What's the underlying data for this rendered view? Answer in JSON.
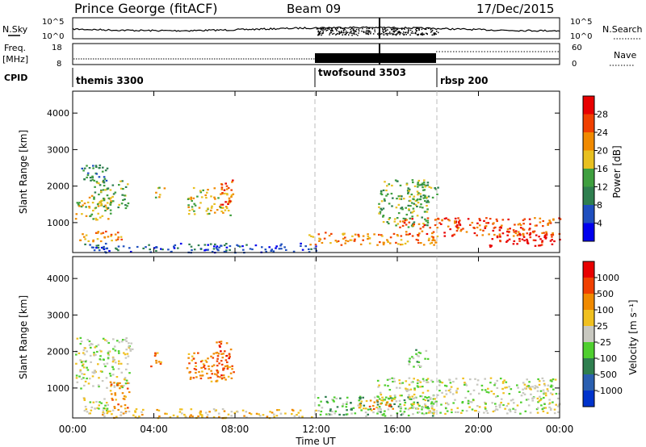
{
  "header": {
    "station": "Prince George (fitACF)",
    "beam": "Beam 09",
    "date": "17/Dec/2015"
  },
  "noise_panel": {
    "left_label": "N.Sky",
    "right_label": "N.Search",
    "left_ticks": [
      "10^5",
      "10^0"
    ],
    "right_ticks": [
      "10^5",
      "10^0"
    ]
  },
  "freq_panel": {
    "left_label_1": "Freq.",
    "left_label_2": "[MHz]",
    "right_label": "Nave",
    "left_ticks": [
      "18",
      "8"
    ],
    "right_ticks": [
      "60",
      "0"
    ]
  },
  "cpid": {
    "label": "CPID",
    "entries": [
      {
        "name": "themis 3300",
        "start": 0
      },
      {
        "name": "twofsound 3503",
        "start": 12
      },
      {
        "name": "rbsp 200",
        "start": 18
      }
    ]
  },
  "x_axis": {
    "label": "Time UT",
    "ticks": [
      "00:00",
      "04:00",
      "08:00",
      "12:00",
      "16:00",
      "20:00",
      "00:00"
    ],
    "tick_hours": [
      0,
      4,
      8,
      12,
      16,
      20,
      24
    ]
  },
  "colors": {
    "power": [
      "#0000ee",
      "#1f4fbf",
      "#2f7f4f",
      "#3f9f3f",
      "#e8c020",
      "#f08a00",
      "#f04000",
      "#e80000"
    ],
    "velocity": [
      "#0033cc",
      "#2a5fb0",
      "#2f7f4f",
      "#4fcf2f",
      "#c8c8c0",
      "#f0c020",
      "#f08a00",
      "#f04000",
      "#e80000"
    ]
  },
  "chart_data": [
    {
      "type": "heatmap",
      "title": "Power",
      "xlabel": "Time UT",
      "ylabel": "Slant Range [km]",
      "xlim": [
        0,
        24
      ],
      "ylim": [
        180,
        4600
      ],
      "yticks": [
        "1000",
        "2000",
        "3000",
        "4000"
      ],
      "colorbar_label": "Power [dB]",
      "colorbar_ticks": [
        "4",
        "8",
        "12",
        "16",
        "20",
        "24",
        "28"
      ],
      "regions": [
        {
          "t0": 0.1,
          "t1": 2.0,
          "r0": 1100,
          "r1": 1800,
          "lvl": 4
        },
        {
          "t0": 0.3,
          "t1": 2.4,
          "r0": 500,
          "r1": 800,
          "lvl": 5
        },
        {
          "t0": 1.0,
          "t1": 2.7,
          "r0": 1400,
          "r1": 2200,
          "lvl": 3
        },
        {
          "t0": 0.4,
          "t1": 1.8,
          "r0": 2100,
          "r1": 2600,
          "lvl": 2
        },
        {
          "t0": 4.0,
          "t1": 4.5,
          "r0": 1700,
          "r1": 2000,
          "lvl": 4
        },
        {
          "t0": 5.6,
          "t1": 7.8,
          "r0": 1200,
          "r1": 2000,
          "lvl": 4
        },
        {
          "t0": 7.2,
          "t1": 7.9,
          "r0": 1500,
          "r1": 2200,
          "lvl": 6
        },
        {
          "t0": 0.5,
          "t1": 12.0,
          "r0": 200,
          "r1": 450,
          "lvl": 1
        },
        {
          "t0": 11.5,
          "t1": 18.0,
          "r0": 400,
          "r1": 750,
          "lvl": 5
        },
        {
          "t0": 15.0,
          "t1": 17.5,
          "r0": 900,
          "r1": 2200,
          "lvl": 3
        },
        {
          "t0": 16.0,
          "t1": 24.0,
          "r0": 650,
          "r1": 1150,
          "lvl": 6
        },
        {
          "t0": 20.5,
          "t1": 24.0,
          "r0": 350,
          "r1": 750,
          "lvl": 7
        },
        {
          "t0": 16.5,
          "t1": 18.0,
          "r0": 1600,
          "r1": 2100,
          "lvl": 3
        }
      ]
    },
    {
      "type": "heatmap",
      "title": "Velocity",
      "xlabel": "Time UT",
      "ylabel": "Slant Range [km]",
      "xlim": [
        0,
        24
      ],
      "ylim": [
        180,
        4600
      ],
      "yticks": [
        "1000",
        "2000",
        "3000",
        "4000"
      ],
      "colorbar_label": "Velocity [m s⁻¹]",
      "colorbar_ticks": [
        "1000",
        "500",
        "100",
        "25",
        "-25",
        "-100",
        "-500",
        "-1000"
      ],
      "regions": [
        {
          "t0": 0.1,
          "t1": 2.9,
          "r0": 1000,
          "r1": 2400,
          "lvl": 4
        },
        {
          "t0": 0.5,
          "t1": 2.0,
          "r0": 350,
          "r1": 750,
          "lvl": 4
        },
        {
          "t0": 1.8,
          "t1": 2.8,
          "r0": 450,
          "r1": 1200,
          "lvl": 6
        },
        {
          "t0": 3.8,
          "t1": 4.4,
          "r0": 1600,
          "r1": 2000,
          "lvl": 6
        },
        {
          "t0": 5.6,
          "t1": 7.8,
          "r0": 1200,
          "r1": 2000,
          "lvl": 6
        },
        {
          "t0": 7.0,
          "t1": 7.9,
          "r0": 1300,
          "r1": 2300,
          "lvl": 7
        },
        {
          "t0": 0.5,
          "t1": 12.0,
          "r0": 200,
          "r1": 450,
          "lvl": 5
        },
        {
          "t0": 12.0,
          "t1": 17.8,
          "r0": 250,
          "r1": 800,
          "lvl": 3
        },
        {
          "t0": 15.0,
          "t1": 24.0,
          "r0": 300,
          "r1": 1300,
          "lvl": 4
        },
        {
          "t0": 16.5,
          "t1": 17.5,
          "r0": 1600,
          "r1": 2100,
          "lvl": 3
        },
        {
          "t0": 14.0,
          "t1": 16.0,
          "r0": 400,
          "r1": 700,
          "lvl": 6
        }
      ]
    }
  ]
}
